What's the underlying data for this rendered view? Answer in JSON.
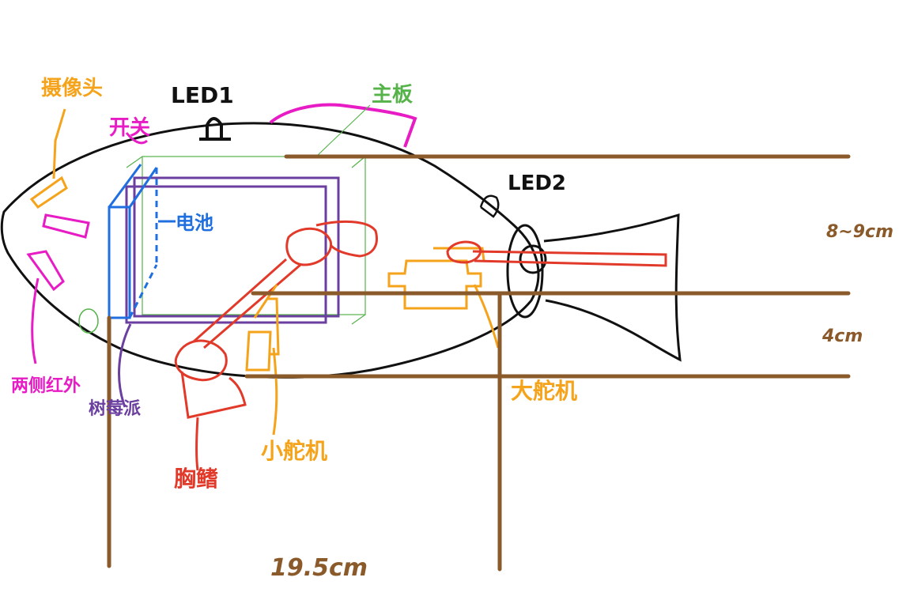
{
  "labels": {
    "camera": "摄像头",
    "led1": "LED1",
    "main_board": "主板",
    "switch": "开关",
    "led2": "LED2",
    "battery": "电池",
    "dim_height": "8~9cm",
    "dim_depth": "4cm",
    "side_ir": "两侧红外",
    "raspberry_pi": "树莓派",
    "pectoral_fin": "胸鳍",
    "small_servo": "小舵机",
    "big_servo": "大舵机",
    "dim_length": "19.5cm"
  },
  "colors": {
    "outline": "#111111",
    "dimension": "#8b5a2b",
    "orange": "#f5a31a",
    "magenta": "#e81cc4",
    "green": "#55b34a",
    "blue": "#1f6fe0",
    "purple": "#6a3fa0",
    "red": "#e23a2a"
  }
}
